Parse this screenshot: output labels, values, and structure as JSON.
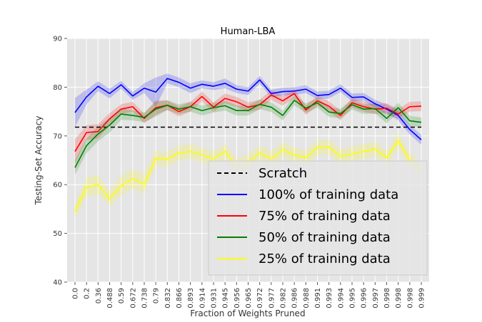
{
  "chart_data": {
    "type": "line",
    "title": "Human-LBA",
    "xlabel": "Fraction of Weights Pruned",
    "ylabel": "Testing-Set Accuracy",
    "ylim": [
      40,
      90
    ],
    "yticks": [
      40,
      50,
      60,
      70,
      80,
      90
    ],
    "grid": true,
    "legend_position": "lower-right",
    "categories": [
      "0.0",
      "0.2",
      "0.36",
      "0.488",
      "0.59",
      "0.672",
      "0.738",
      "0.79",
      "0.832",
      "0.866",
      "0.893",
      "0.914",
      "0.931",
      "0.945",
      "0.956",
      "0.965",
      "0.972",
      "0.977",
      "0.982",
      "0.986",
      "0.988",
      "0.991",
      "0.993",
      "0.994",
      "0.995",
      "0.996",
      "0.997",
      "0.998",
      "0.998",
      "0.998",
      "0.999"
    ],
    "series": [
      {
        "name": "Scratch",
        "color": "#000000",
        "dashed": true,
        "values": [
          71.8,
          71.8,
          71.8,
          71.8,
          71.8,
          71.8,
          71.8,
          71.8,
          71.8,
          71.8,
          71.8,
          71.8,
          71.8,
          71.8,
          71.8,
          71.8,
          71.8,
          71.8,
          71.8,
          71.8,
          71.8,
          71.8,
          71.8,
          71.8,
          71.8,
          71.8,
          71.8,
          71.8,
          71.8,
          71.8,
          71.8
        ]
      },
      {
        "name": "100% of training data",
        "color": "#0000ff",
        "values": [
          74.8,
          78.0,
          80.2,
          78.7,
          80.5,
          78.2,
          79.8,
          79.0,
          81.8,
          81.0,
          79.8,
          80.6,
          80.2,
          80.8,
          79.6,
          79.2,
          81.5,
          78.7,
          79.1,
          79.2,
          79.6,
          78.3,
          78.5,
          79.8,
          77.9,
          78.0,
          76.6,
          75.5,
          74.2,
          71.3,
          69.2
        ],
        "band": [
          3.0,
          1.5,
          1.0,
          1.0,
          0.8,
          0.8,
          1.0,
          3.0,
          1.0,
          1.0,
          1.0,
          0.8,
          0.8,
          1.0,
          0.8,
          0.8,
          0.8,
          0.8,
          0.8,
          0.8,
          0.8,
          0.8,
          0.8,
          0.8,
          0.8,
          0.8,
          0.8,
          1.0,
          1.0,
          1.0,
          1.0
        ]
      },
      {
        "name": "75% of training data",
        "color": "#ff0000",
        "values": [
          66.8,
          70.7,
          70.9,
          73.5,
          75.5,
          76.0,
          73.6,
          75.8,
          76.3,
          75.0,
          76.0,
          78.1,
          75.9,
          77.7,
          77.0,
          75.9,
          76.4,
          78.4,
          77.2,
          78.7,
          75.3,
          77.2,
          76.1,
          74.2,
          76.8,
          76.0,
          75.5,
          75.7,
          74.5,
          76.0,
          76.1
        ],
        "band": [
          2.5,
          1.5,
          1.5,
          1.2,
          1.0,
          1.0,
          1.0,
          1.5,
          1.0,
          1.0,
          1.0,
          1.0,
          1.0,
          1.0,
          1.0,
          1.0,
          1.0,
          1.0,
          1.0,
          1.0,
          1.0,
          1.0,
          1.0,
          1.0,
          1.0,
          1.0,
          1.0,
          1.0,
          1.0,
          1.0,
          1.0
        ]
      },
      {
        "name": "50% of training data",
        "color": "#008000",
        "values": [
          63.5,
          68.0,
          70.4,
          72.2,
          74.5,
          74.2,
          73.8,
          75.5,
          76.3,
          75.5,
          76.0,
          75.2,
          75.8,
          76.2,
          75.2,
          75.2,
          76.5,
          75.9,
          74.2,
          77.3,
          75.7,
          76.8,
          74.9,
          74.6,
          76.4,
          75.5,
          75.6,
          73.6,
          75.8,
          73.1,
          72.8
        ],
        "band": [
          1.5,
          1.5,
          1.5,
          1.5,
          1.2,
          1.0,
          1.0,
          1.5,
          1.0,
          1.0,
          1.0,
          1.0,
          1.0,
          1.0,
          1.0,
          1.0,
          1.0,
          1.0,
          1.0,
          1.0,
          1.0,
          1.0,
          1.0,
          1.0,
          1.0,
          1.0,
          1.0,
          1.0,
          1.0,
          1.0,
          1.0
        ]
      },
      {
        "name": "25% of training data",
        "color": "#ffff00",
        "values": [
          54.5,
          59.5,
          60.0,
          57.1,
          59.8,
          61.2,
          60.1,
          65.4,
          65.2,
          66.5,
          66.8,
          66.1,
          65.3,
          66.8,
          63.8,
          64.7,
          66.5,
          65.3,
          67.2,
          66.1,
          65.5,
          67.6,
          67.7,
          65.8,
          66.3,
          66.8,
          67.3,
          65.5,
          69.0,
          65.0,
          63.0
        ],
        "band": [
          1.5,
          2.0,
          2.0,
          1.5,
          2.0,
          2.0,
          2.0,
          1.5,
          1.5,
          1.5,
          1.5,
          1.5,
          1.5,
          1.5,
          1.5,
          1.5,
          1.5,
          1.5,
          1.5,
          1.5,
          1.5,
          1.5,
          1.5,
          1.5,
          1.5,
          1.5,
          1.5,
          1.5,
          1.5,
          1.5,
          1.5
        ]
      }
    ]
  }
}
